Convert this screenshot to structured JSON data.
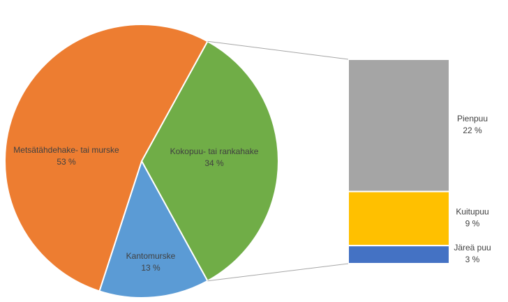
{
  "chart_data": [
    {
      "type": "pie",
      "categories": [
        "Kokopuu- tai rankahake",
        "Kantomurske",
        "Metsätähdehake- tai murske"
      ],
      "values": [
        34,
        13,
        53
      ],
      "value_labels": [
        "34 %",
        "13 %",
        "53 %"
      ],
      "colors": [
        "#70ad47",
        "#5b9bd5",
        "#ed7d31"
      ]
    },
    {
      "type": "stacked-bar",
      "categories": [
        "Pienpuu",
        "Kuitupuu",
        "Järeä puu"
      ],
      "values": [
        22,
        9,
        3
      ],
      "value_labels": [
        "22 %",
        "9 %",
        "3 %"
      ],
      "colors": [
        "#a5a5a5",
        "#ffc000",
        "#4472c4"
      ]
    }
  ]
}
